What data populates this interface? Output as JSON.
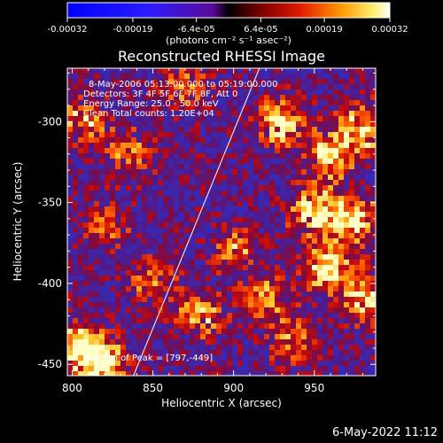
{
  "chart_data": {
    "type": "heatmap",
    "title": "Reconstructed RHESSI Image",
    "xlabel": "Heliocentric X (arcsec)",
    "ylabel": "Heliocentric Y (arcsec)",
    "xlim": [
      797,
      988
    ],
    "ylim": [
      -457,
      -267
    ],
    "x_ticks": [
      "800",
      "850",
      "900",
      "950"
    ],
    "y_ticks": [
      "-300",
      "-350",
      "-400",
      "-450"
    ],
    "colorbar": {
      "ticks": [
        "-0.00032",
        "-0.00019",
        "-6.4e-05",
        "6.4e-05",
        "0.00019",
        "0.00032"
      ],
      "vmin": -0.00032,
      "vmax": 0.00032,
      "units_label": "(photons cm⁻² s⁻¹ asec⁻²)"
    },
    "annotations": [
      "8-May-2006 05:13:00.000 to 05:19:00.000",
      "Detectors: 3F 4F 5F 6F 7F 8F, Att 0",
      "Energy Range: 25.0 - 50.0 keV",
      "Clean     Total counts: 1.20E+04"
    ],
    "peak_label": "Position of Peak = [797,-449]",
    "limb_line": [
      [
        838,
        -457
      ],
      [
        916,
        -267
      ]
    ],
    "bright_sources": [
      {
        "x": 930,
        "y": -300,
        "intensity": 0.9
      },
      {
        "x": 980,
        "y": -305,
        "intensity": 0.85
      },
      {
        "x": 960,
        "y": -320,
        "intensity": 0.8
      },
      {
        "x": 950,
        "y": -355,
        "intensity": 0.9
      },
      {
        "x": 975,
        "y": -360,
        "intensity": 0.8
      },
      {
        "x": 960,
        "y": -390,
        "intensity": 0.95
      },
      {
        "x": 982,
        "y": -410,
        "intensity": 0.8
      },
      {
        "x": 805,
        "y": -440,
        "intensity": 1.0
      },
      {
        "x": 820,
        "y": -450,
        "intensity": 0.9
      },
      {
        "x": 808,
        "y": -300,
        "intensity": 0.6
      },
      {
        "x": 835,
        "y": -320,
        "intensity": 0.55
      },
      {
        "x": 880,
        "y": -420,
        "intensity": 0.6
      },
      {
        "x": 920,
        "y": -410,
        "intensity": 0.6
      },
      {
        "x": 938,
        "y": -435,
        "intensity": 0.55
      },
      {
        "x": 870,
        "y": -280,
        "intensity": 0.5
      },
      {
        "x": 900,
        "y": -380,
        "intensity": 0.5
      },
      {
        "x": 850,
        "y": -400,
        "intensity": 0.5
      },
      {
        "x": 820,
        "y": -365,
        "intensity": 0.45
      }
    ]
  },
  "footer": {
    "timestamp": "6-May-2022 11:12"
  }
}
